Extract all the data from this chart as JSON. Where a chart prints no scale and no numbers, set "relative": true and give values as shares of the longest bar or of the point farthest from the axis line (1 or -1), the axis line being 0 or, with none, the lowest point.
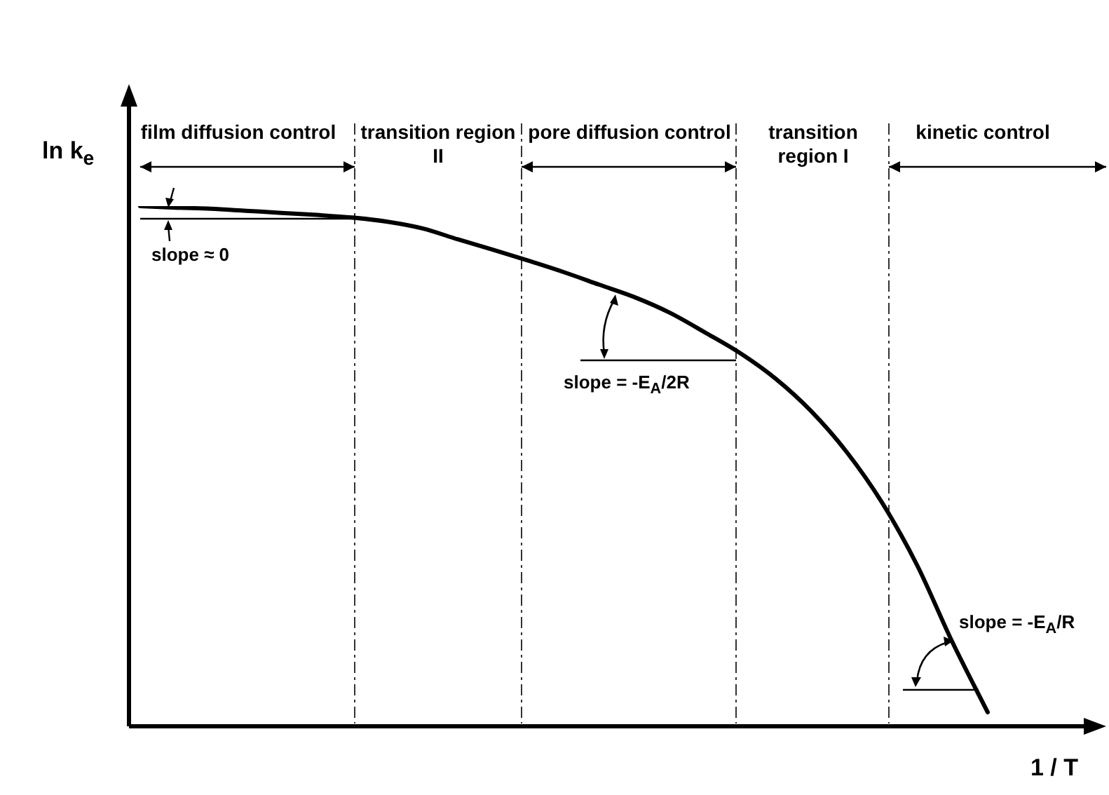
{
  "chart_data": {
    "type": "line",
    "relative": true,
    "xlabel": "1 / T",
    "ylabel": "ln k$_{e}$",
    "color": "#000000",
    "tick_labels": false,
    "marker": "none",
    "line_style": "solid",
    "categories": [
      null,
      null,
      null,
      null,
      null,
      null,
      null,
      null,
      null,
      null,
      null,
      null,
      null,
      null,
      null,
      null,
      null,
      null,
      null,
      null,
      null,
      null,
      null,
      null,
      null,
      null,
      null,
      null
    ],
    "values": [
      1,
      0.997,
      0.995,
      0.991,
      0.987,
      0.983,
      0.978,
      0.97,
      0.957,
      0.936,
      0.916,
      0.895,
      0.873,
      0.849,
      0.825,
      0.795,
      0.757,
      0.717,
      0.668,
      0.606,
      0.528,
      0.431,
      0.31,
      0.162,
      0.027,
      null,
      null,
      null
    ],
    "annotations": [
      "film diffusion control",
      "transition region II",
      "pore diffusion control",
      "transition region I",
      "kinetic control",
      "slope ≈ 0",
      "slope = -E$_{A}$/2R",
      "slope = -E$_{A}$/R"
    ]
  }
}
